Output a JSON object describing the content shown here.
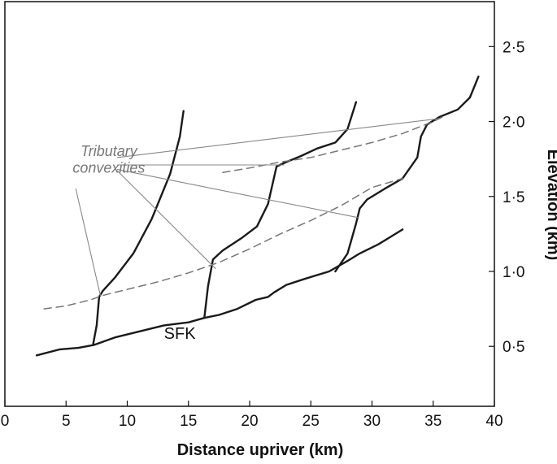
{
  "chart_data": {
    "type": "line",
    "title": "",
    "xlabel": "Distance upriver (km)",
    "ylabel": "Elevation (km)",
    "xlim": [
      0,
      40
    ],
    "ylim": [
      0.1,
      2.8
    ],
    "x_ticks": [
      "0",
      "5",
      "10",
      "15",
      "20",
      "25",
      "30",
      "35",
      "40"
    ],
    "y_ticks": [
      "0·5",
      "1·0",
      "1·5",
      "2·0",
      "2·5"
    ],
    "y_axis_side": "right",
    "grid": false,
    "series": [
      {
        "name": "SFK",
        "style": "solid-thick",
        "x": [
          2.6,
          4.5,
          6.0,
          7.3,
          9.0,
          11.0,
          13.0,
          15.0,
          16.3,
          17.5,
          19.0,
          20.5,
          21.5,
          22.0,
          23.0,
          24.5,
          26.5,
          28.0,
          29.0,
          30.5,
          31.5,
          32.5
        ],
        "y": [
          0.44,
          0.48,
          0.49,
          0.51,
          0.56,
          0.6,
          0.64,
          0.66,
          0.69,
          0.71,
          0.75,
          0.81,
          0.83,
          0.86,
          0.91,
          0.95,
          1.0,
          1.07,
          1.12,
          1.18,
          1.23,
          1.28
        ]
      },
      {
        "style": "solid-thick",
        "x": [
          7.2,
          7.5,
          7.7,
          8.0,
          9.0,
          10.5,
          12.0,
          13.5,
          14.3,
          14.6
        ],
        "y": [
          0.51,
          0.64,
          0.83,
          0.87,
          0.96,
          1.12,
          1.35,
          1.65,
          1.9,
          2.07
        ]
      },
      {
        "style": "solid-thick",
        "x": [
          16.3,
          16.6,
          17.0,
          17.8,
          19.3,
          20.6,
          21.5,
          22.2,
          23.0,
          24.2,
          25.5,
          27.0,
          28.0,
          28.7
        ],
        "y": [
          0.69,
          0.9,
          1.08,
          1.14,
          1.22,
          1.3,
          1.45,
          1.7,
          1.73,
          1.77,
          1.82,
          1.86,
          1.95,
          2.13
        ]
      },
      {
        "style": "solid-thick",
        "x": [
          27.0,
          28.0,
          28.7,
          29.0,
          29.6,
          31.0,
          32.5,
          33.7,
          34.0,
          34.5,
          35.5,
          37.0,
          38.0,
          38.7
        ],
        "y": [
          1.0,
          1.12,
          1.32,
          1.42,
          1.48,
          1.55,
          1.62,
          1.76,
          1.9,
          1.98,
          2.03,
          2.08,
          2.16,
          2.3
        ]
      },
      {
        "style": "dashed",
        "x": [
          3.2,
          5.0,
          7.0,
          8.0,
          10.0,
          12.5,
          15.0,
          17.5,
          20.0,
          22.5,
          25.0,
          27.5,
          30.0,
          32.5
        ],
        "y": [
          0.75,
          0.77,
          0.81,
          0.84,
          0.88,
          0.93,
          0.99,
          1.06,
          1.15,
          1.25,
          1.34,
          1.44,
          1.56,
          1.62
        ]
      },
      {
        "style": "dashed",
        "x": [
          17.8,
          20.0,
          22.5,
          25.0,
          27.5,
          30.0,
          32.5,
          35.0,
          36.0
        ],
        "y": [
          1.66,
          1.69,
          1.73,
          1.76,
          1.81,
          1.86,
          1.92,
          2.0,
          2.04
        ]
      },
      {
        "style": "leader",
        "x": [
          9.2,
          22.8
        ],
        "y": [
          1.71,
          1.71
        ]
      },
      {
        "style": "leader",
        "x": [
          9.2,
          35.5
        ],
        "y": [
          1.76,
          2.02
        ]
      },
      {
        "style": "leader",
        "x": [
          9.2,
          28.8
        ],
        "y": [
          1.68,
          1.36
        ]
      },
      {
        "style": "leader",
        "x": [
          9.2,
          17.2
        ],
        "y": [
          1.67,
          1.02
        ]
      },
      {
        "style": "leader",
        "x": [
          5.8,
          7.8
        ],
        "y": [
          1.55,
          0.84
        ]
      }
    ],
    "annotations": [
      {
        "text": "Tributary",
        "x": 8.5,
        "y": 1.77
      },
      {
        "text": "convexities",
        "x": 8.5,
        "y": 1.66
      }
    ],
    "series_label": {
      "text": "SFK",
      "x": 13.0,
      "y": 0.55
    }
  }
}
